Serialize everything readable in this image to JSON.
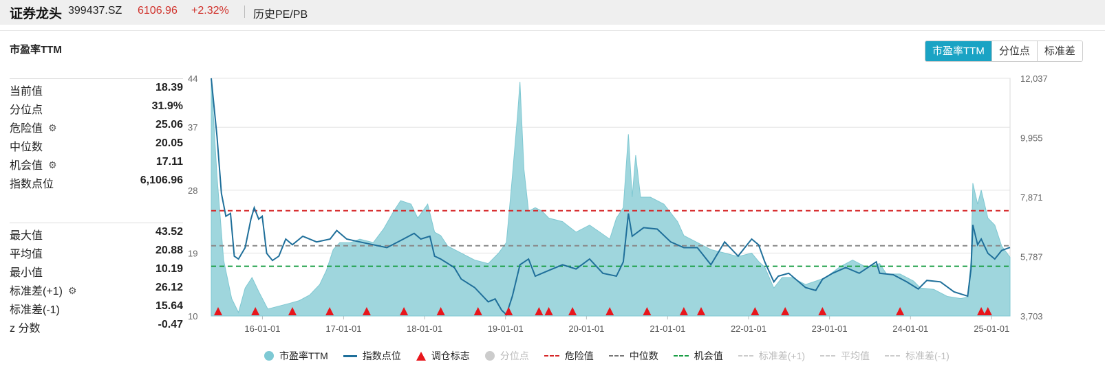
{
  "header": {
    "name": "证券龙头",
    "code": "399437.SZ",
    "price": "6106.96",
    "change": "+2.32%",
    "menu": "历史PE/PB"
  },
  "metric_title": "市盈率TTM",
  "tabs": [
    "市盈率TTM",
    "分位点",
    "标准差"
  ],
  "active_tab": 0,
  "stats_top": [
    {
      "label": "当前值",
      "value": "18.39",
      "gear": false
    },
    {
      "label": "分位点",
      "value": "31.9%",
      "gear": false
    },
    {
      "label": "危险值",
      "value": "25.06",
      "gear": true
    },
    {
      "label": "中位数",
      "value": "20.05",
      "gear": false
    },
    {
      "label": "机会值",
      "value": "17.11",
      "gear": true
    },
    {
      "label": "指数点位",
      "value": "6,106.96",
      "gear": false
    }
  ],
  "stats_bottom": [
    {
      "label": "最大值",
      "value": "43.52",
      "gear": false
    },
    {
      "label": "平均值",
      "value": "20.88",
      "gear": false
    },
    {
      "label": "最小值",
      "value": "10.19",
      "gear": false
    },
    {
      "label": "标准差(+1)",
      "value": "26.12",
      "gear": true
    },
    {
      "label": "标准差(-1)",
      "value": "15.64",
      "gear": false
    },
    {
      "label": "z 分数",
      "value": "-0.47",
      "gear": false
    }
  ],
  "colors": {
    "pe_fill": "#9fd6dd",
    "pe_stroke": "#7fc8d2",
    "index_line": "#1f6f9a",
    "danger": "#d62728",
    "median": "#888888",
    "opportunity": "#1a9e45",
    "marker": "#e8161c",
    "accent": "#1aa3c4"
  },
  "chart_data": {
    "type": "area",
    "x_axis": {
      "type": "date",
      "range": [
        "2015-05-15",
        "2025-03-25"
      ],
      "tick_labels": [
        "16-01-01",
        "17-01-01",
        "18-01-01",
        "19-01-01",
        "20-01-01",
        "21-01-01",
        "22-01-01",
        "23-01-01",
        "24-01-01",
        "25-01-01"
      ]
    },
    "y_left": {
      "range": [
        10,
        44
      ],
      "tick_labels": [
        "44",
        "37",
        "28",
        "19",
        "10"
      ]
    },
    "y_right": {
      "range": [
        3703,
        12037
      ],
      "tick_labels": [
        "12,037",
        "9,955",
        "7,871",
        "5,787",
        "3,703"
      ]
    },
    "reference_lines": [
      {
        "name": "危险值",
        "value": 25.06,
        "style": "dashed",
        "color": "#d62728"
      },
      {
        "name": "中位数",
        "value": 20.05,
        "style": "dashed",
        "color": "#888888"
      },
      {
        "name": "机会值",
        "value": 17.11,
        "style": "dashed",
        "color": "#1a9e45"
      }
    ],
    "series": [
      {
        "name": "市盈率TTM",
        "axis": "left",
        "type": "area",
        "points": [
          [
            "2015-05-15",
            44
          ],
          [
            "2015-06-10",
            30
          ],
          [
            "2015-07-10",
            18
          ],
          [
            "2015-08-15",
            12.5
          ],
          [
            "2015-09-15",
            10.5
          ],
          [
            "2015-10-15",
            14
          ],
          [
            "2015-11-15",
            15.5
          ],
          [
            "2015-12-15",
            13.5
          ],
          [
            "2016-01-25",
            11
          ],
          [
            "2016-03-01",
            11.3
          ],
          [
            "2016-05-01",
            11.8
          ],
          [
            "2016-06-15",
            12.2
          ],
          [
            "2016-08-01",
            13
          ],
          [
            "2016-09-15",
            14.5
          ],
          [
            "2016-10-15",
            16.5
          ],
          [
            "2016-11-15",
            19.5
          ],
          [
            "2016-12-15",
            20.5
          ],
          [
            "2017-02-01",
            20.5
          ],
          [
            "2017-03-15",
            21
          ],
          [
            "2017-05-15",
            20.5
          ],
          [
            "2017-07-01",
            22.5
          ],
          [
            "2017-08-15",
            25
          ],
          [
            "2017-09-15",
            26.5
          ],
          [
            "2017-11-01",
            26
          ],
          [
            "2017-12-01",
            24
          ],
          [
            "2018-01-15",
            26
          ],
          [
            "2018-02-15",
            22
          ],
          [
            "2018-03-15",
            21.5
          ],
          [
            "2018-04-15",
            20
          ],
          [
            "2018-06-15",
            19
          ],
          [
            "2018-08-15",
            18
          ],
          [
            "2018-10-15",
            17.5
          ],
          [
            "2018-12-01",
            19
          ],
          [
            "2019-01-05",
            20.5
          ],
          [
            "2019-02-01",
            30
          ],
          [
            "2019-02-25",
            39
          ],
          [
            "2019-03-07",
            43.5
          ],
          [
            "2019-03-25",
            31
          ],
          [
            "2019-04-15",
            25
          ],
          [
            "2019-05-15",
            25.5
          ],
          [
            "2019-06-15",
            25
          ],
          [
            "2019-07-15",
            24
          ],
          [
            "2019-09-15",
            23.5
          ],
          [
            "2019-11-15",
            22
          ],
          [
            "2020-01-15",
            23
          ],
          [
            "2020-03-01",
            22
          ],
          [
            "2020-04-15",
            21
          ],
          [
            "2020-05-15",
            24
          ],
          [
            "2020-06-15",
            25.5
          ],
          [
            "2020-07-08",
            36
          ],
          [
            "2020-07-25",
            27
          ],
          [
            "2020-08-10",
            33
          ],
          [
            "2020-09-01",
            27
          ],
          [
            "2020-10-15",
            27
          ],
          [
            "2020-12-15",
            26
          ],
          [
            "2021-02-15",
            23.5
          ],
          [
            "2021-03-15",
            21.5
          ],
          [
            "2021-05-15",
            20.5
          ],
          [
            "2021-07-15",
            19.5
          ],
          [
            "2021-09-15",
            19
          ],
          [
            "2021-11-15",
            18.5
          ],
          [
            "2022-01-15",
            19
          ],
          [
            "2022-02-15",
            17.8
          ],
          [
            "2022-03-15",
            17
          ],
          [
            "2022-04-25",
            14
          ],
          [
            "2022-06-01",
            15.5
          ],
          [
            "2022-07-15",
            15.5
          ],
          [
            "2022-09-15",
            14.5
          ],
          [
            "2022-11-01",
            15
          ],
          [
            "2022-12-15",
            15.5
          ],
          [
            "2023-02-15",
            17
          ],
          [
            "2023-04-15",
            18
          ],
          [
            "2023-06-15",
            17
          ],
          [
            "2023-08-15",
            17.5
          ],
          [
            "2023-09-15",
            16
          ],
          [
            "2023-11-15",
            16
          ],
          [
            "2024-01-15",
            15
          ],
          [
            "2024-02-15",
            14
          ],
          [
            "2024-04-15",
            13.8
          ],
          [
            "2024-06-15",
            12.8
          ],
          [
            "2024-08-15",
            12.5
          ],
          [
            "2024-09-15",
            12.7
          ],
          [
            "2024-09-30",
            18
          ],
          [
            "2024-10-08",
            29
          ],
          [
            "2024-10-30",
            26
          ],
          [
            "2024-11-15",
            28
          ],
          [
            "2024-12-15",
            24
          ],
          [
            "2025-01-15",
            23
          ],
          [
            "2025-02-15",
            20
          ],
          [
            "2025-03-25",
            18.39
          ]
        ]
      },
      {
        "name": "指数点位",
        "axis": "right",
        "type": "line",
        "points": [
          [
            "2015-05-15",
            12037
          ],
          [
            "2015-06-10",
            10000
          ],
          [
            "2015-06-30",
            8000
          ],
          [
            "2015-07-20",
            7200
          ],
          [
            "2015-08-10",
            7300
          ],
          [
            "2015-08-27",
            5800
          ],
          [
            "2015-09-15",
            5700
          ],
          [
            "2015-10-15",
            6100
          ],
          [
            "2015-11-10",
            7100
          ],
          [
            "2015-11-25",
            7500
          ],
          [
            "2015-12-15",
            7100
          ],
          [
            "2015-12-31",
            7200
          ],
          [
            "2016-01-20",
            5900
          ],
          [
            "2016-02-15",
            5650
          ],
          [
            "2016-03-15",
            5800
          ],
          [
            "2016-04-15",
            6400
          ],
          [
            "2016-05-15",
            6200
          ],
          [
            "2016-07-01",
            6500
          ],
          [
            "2016-09-01",
            6300
          ],
          [
            "2016-11-01",
            6400
          ],
          [
            "2016-12-01",
            6700
          ],
          [
            "2017-01-15",
            6400
          ],
          [
            "2017-03-15",
            6300
          ],
          [
            "2017-05-15",
            6200
          ],
          [
            "2017-07-15",
            6100
          ],
          [
            "2017-09-15",
            6350
          ],
          [
            "2017-11-15",
            6600
          ],
          [
            "2017-12-15",
            6400
          ],
          [
            "2018-01-25",
            6500
          ],
          [
            "2018-02-15",
            5800
          ],
          [
            "2018-03-15",
            5700
          ],
          [
            "2018-05-15",
            5400
          ],
          [
            "2018-06-15",
            5000
          ],
          [
            "2018-08-15",
            4700
          ],
          [
            "2018-10-15",
            4200
          ],
          [
            "2018-11-15",
            4300
          ],
          [
            "2018-12-15",
            3900
          ],
          [
            "2019-01-05",
            3750
          ],
          [
            "2019-02-01",
            4400
          ],
          [
            "2019-03-07",
            5500
          ],
          [
            "2019-04-15",
            5700
          ],
          [
            "2019-05-15",
            5100
          ],
          [
            "2019-07-15",
            5300
          ],
          [
            "2019-09-15",
            5500
          ],
          [
            "2019-11-15",
            5350
          ],
          [
            "2020-01-15",
            5700
          ],
          [
            "2020-03-15",
            5200
          ],
          [
            "2020-05-15",
            5100
          ],
          [
            "2020-06-15",
            5600
          ],
          [
            "2020-07-08",
            7300
          ],
          [
            "2020-07-25",
            6500
          ],
          [
            "2020-09-15",
            6800
          ],
          [
            "2020-11-15",
            6750
          ],
          [
            "2021-01-15",
            6300
          ],
          [
            "2021-03-15",
            6100
          ],
          [
            "2021-05-15",
            6100
          ],
          [
            "2021-07-15",
            5500
          ],
          [
            "2021-09-15",
            6300
          ],
          [
            "2021-11-15",
            5800
          ],
          [
            "2021-12-15",
            6100
          ],
          [
            "2022-01-15",
            6400
          ],
          [
            "2022-02-15",
            6200
          ],
          [
            "2022-03-15",
            5600
          ],
          [
            "2022-04-25",
            4900
          ],
          [
            "2022-05-15",
            5100
          ],
          [
            "2022-07-01",
            5200
          ],
          [
            "2022-09-15",
            4700
          ],
          [
            "2022-10-31",
            4600
          ],
          [
            "2022-12-01",
            5000
          ],
          [
            "2023-01-15",
            5200
          ],
          [
            "2023-03-15",
            5400
          ],
          [
            "2023-05-15",
            5200
          ],
          [
            "2023-07-31",
            5600
          ],
          [
            "2023-08-15",
            5200
          ],
          [
            "2023-10-15",
            5150
          ],
          [
            "2023-12-15",
            4900
          ],
          [
            "2024-02-05",
            4650
          ],
          [
            "2024-03-15",
            4950
          ],
          [
            "2024-05-15",
            4900
          ],
          [
            "2024-07-15",
            4550
          ],
          [
            "2024-09-15",
            4400
          ],
          [
            "2024-09-30",
            5350
          ],
          [
            "2024-10-08",
            6900
          ],
          [
            "2024-10-30",
            6200
          ],
          [
            "2024-11-15",
            6400
          ],
          [
            "2024-12-15",
            5900
          ],
          [
            "2025-01-15",
            5700
          ],
          [
            "2025-02-15",
            6000
          ],
          [
            "2025-03-25",
            6106.96
          ]
        ]
      }
    ],
    "markers": {
      "name": "调仓标志",
      "dates": [
        "2015-06-15",
        "2015-11-30",
        "2016-05-15",
        "2016-10-30",
        "2017-04-15",
        "2017-09-30",
        "2018-03-15",
        "2018-08-30",
        "2019-01-15",
        "2019-06-01",
        "2019-07-15",
        "2019-10-30",
        "2020-04-15",
        "2020-09-30",
        "2021-03-15",
        "2021-06-01",
        "2022-01-30",
        "2022-06-15",
        "2022-11-30",
        "2023-11-15",
        "2024-11-15",
        "2024-12-15"
      ]
    },
    "legend": [
      {
        "name": "市盈率TTM",
        "marker": "circle",
        "color": "#7ec9d4",
        "enabled": true
      },
      {
        "name": "指数点位",
        "marker": "line",
        "color": "#1f6f9a",
        "enabled": true
      },
      {
        "name": "调仓标志",
        "marker": "triangle",
        "color": "#e8161c",
        "enabled": true
      },
      {
        "name": "分位点",
        "marker": "circle",
        "color": "#cccccc",
        "enabled": false
      },
      {
        "name": "危险值",
        "marker": "dash",
        "color": "#d62728",
        "enabled": true
      },
      {
        "name": "中位数",
        "marker": "dash",
        "color": "#777777",
        "enabled": true
      },
      {
        "name": "机会值",
        "marker": "dash",
        "color": "#1a9e45",
        "enabled": true
      },
      {
        "name": "标准差(+1)",
        "marker": "dash",
        "color": "#cccccc",
        "enabled": false
      },
      {
        "name": "平均值",
        "marker": "dash",
        "color": "#cccccc",
        "enabled": false
      },
      {
        "name": "标准差(-1)",
        "marker": "dash",
        "color": "#cccccc",
        "enabled": false
      }
    ],
    "legend_position": "bottom",
    "grid": true
  }
}
